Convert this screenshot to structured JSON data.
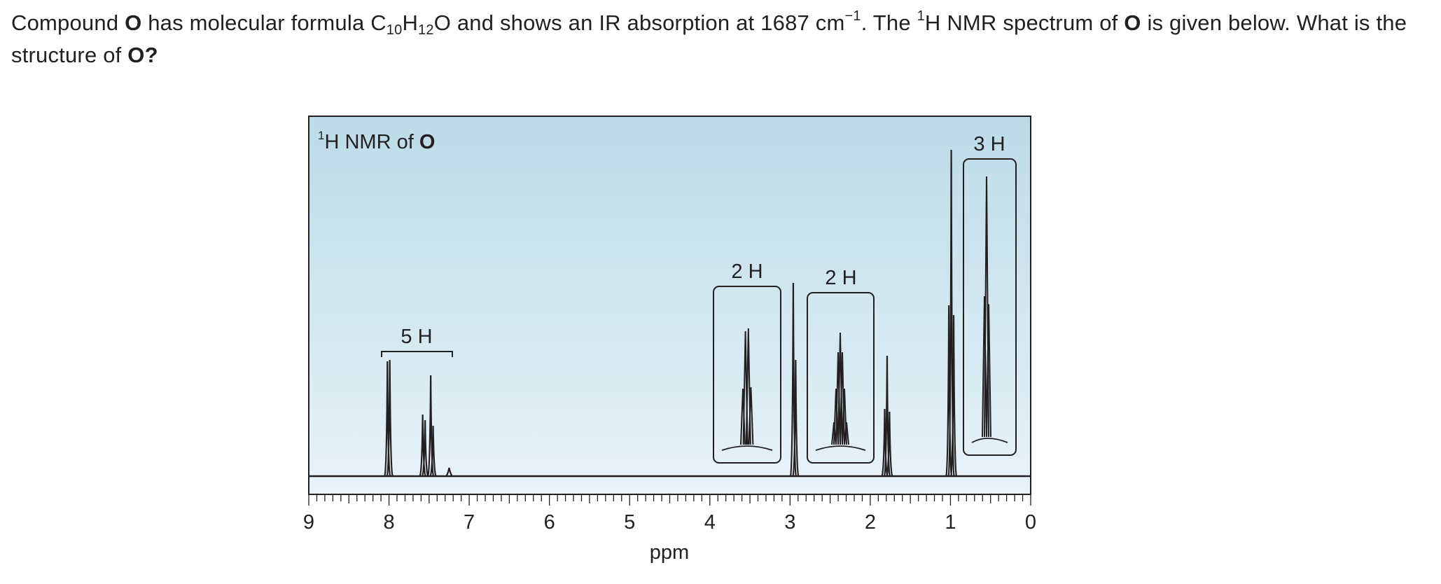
{
  "question": {
    "p1": "Compound ",
    "compound": "O",
    "p2": " has molecular formula C",
    "c_sub": "10",
    "h": "H",
    "h_sub": "12",
    "p3": "O and shows an IR absorption at 1687 cm",
    "cm_sup": "−1",
    "p4": ". The ",
    "nmr_sup": "1",
    "p5": "H NMR spectrum of ",
    "compound2": "O",
    "p6": " is given below. What is the structure of ",
    "final_bold": "O?"
  },
  "chart_data": {
    "type": "line",
    "title": {
      "sup": "1",
      "text": "H NMR of ",
      "bold": "O"
    },
    "xlabel": "ppm",
    "ylabel": "",
    "xlim": [
      9,
      0
    ],
    "x_reversed": true,
    "grid": false,
    "xticks": [
      "9",
      "8",
      "7",
      "6",
      "5",
      "4",
      "3",
      "2",
      "1",
      "0"
    ],
    "minor_tick_step": 0.1,
    "peaks": [
      {
        "ppm": 8.02,
        "height": 0.82
      },
      {
        "ppm": 7.99,
        "height": 0.83
      },
      {
        "ppm": 7.58,
        "height": 0.44
      },
      {
        "ppm": 7.55,
        "height": 0.4
      },
      {
        "ppm": 7.48,
        "height": 0.72
      },
      {
        "ppm": 7.45,
        "height": 0.36
      },
      {
        "ppm": 7.25,
        "height": 0.06
      },
      {
        "ppm": 2.96,
        "height": 1.38
      },
      {
        "ppm": 2.93,
        "height": 0.83
      },
      {
        "ppm": 1.82,
        "height": 0.48
      },
      {
        "ppm": 1.79,
        "height": 0.86
      },
      {
        "ppm": 1.76,
        "height": 0.46
      },
      {
        "ppm": 1.02,
        "height": 1.22
      },
      {
        "ppm": 0.99,
        "height": 2.33
      },
      {
        "ppm": 0.96,
        "height": 1.15
      }
    ],
    "expansions": [
      {
        "label": "2 H",
        "peaks": [
          {
            "offset": -0.1,
            "height": 0.44
          },
          {
            "offset": -0.04,
            "height": 0.85
          },
          {
            "offset": 0.03,
            "height": 0.87
          },
          {
            "offset": 0.09,
            "height": 0.45
          }
        ]
      },
      {
        "label": "2 H",
        "peaks": [
          {
            "offset": -0.15,
            "height": 0.2
          },
          {
            "offset": -0.1,
            "height": 0.44
          },
          {
            "offset": -0.05,
            "height": 0.7
          },
          {
            "offset": 0.0,
            "height": 0.84
          },
          {
            "offset": 0.05,
            "height": 0.7
          },
          {
            "offset": 0.1,
            "height": 0.44
          },
          {
            "offset": 0.15,
            "height": 0.2
          }
        ]
      },
      {
        "label": "3 H",
        "peaks": [
          {
            "offset": -0.05,
            "height": 0.55
          },
          {
            "offset": 0.0,
            "height": 1.0
          },
          {
            "offset": 0.05,
            "height": 0.52
          }
        ]
      }
    ],
    "integrations": [
      {
        "label": "5 H"
      }
    ]
  }
}
